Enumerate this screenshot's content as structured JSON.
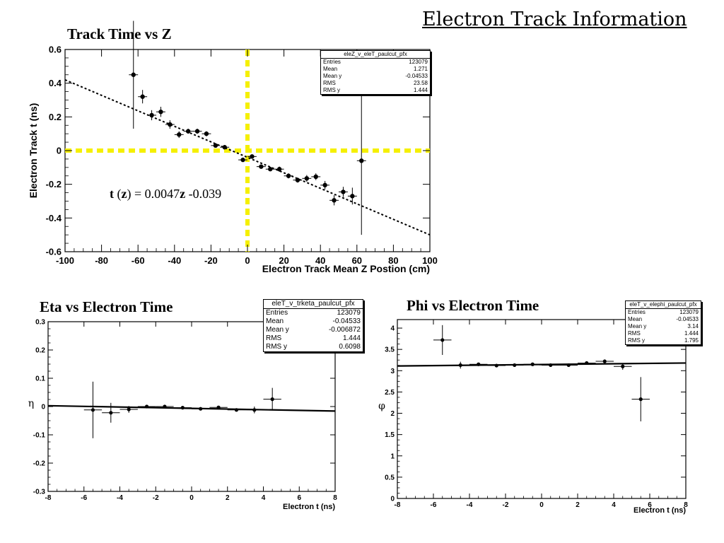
{
  "slide": {
    "title": "Electron Track Information"
  },
  "chart_data": [
    {
      "id": "track-time-vs-z",
      "type": "scatter",
      "title": "Track Time vs Z",
      "xlabel": "Electron Track Mean Z Postion (cm)",
      "ylabel": "Electron Track t (ns)",
      "xlim": [
        -100,
        100
      ],
      "ylim": [
        -0.6,
        0.6
      ],
      "x_ticks": [
        -100,
        -80,
        -60,
        -40,
        -20,
        0,
        20,
        40,
        60,
        80,
        100
      ],
      "y_ticks": [
        -0.6,
        -0.4,
        -0.2,
        0,
        0.2,
        0.4,
        0.6
      ],
      "x_tick_labels": [
        "-100",
        "-80",
        "-60",
        "-40",
        "-20",
        "0",
        "20",
        "40",
        "60",
        "80",
        "100"
      ],
      "y_tick_labels": [
        "-0.6",
        "-0.4",
        "-0.2",
        "0",
        "0.2",
        "0.4",
        "0.6"
      ],
      "points": [
        {
          "x": -62.5,
          "y": 0.45,
          "yerr": 0.32,
          "xerr": 2.5
        },
        {
          "x": -57.5,
          "y": 0.32,
          "yerr": 0.04,
          "xerr": 2.5
        },
        {
          "x": -52.5,
          "y": 0.21,
          "yerr": 0.03,
          "xerr": 2.5
        },
        {
          "x": -47.5,
          "y": 0.23,
          "yerr": 0.03,
          "xerr": 2.5
        },
        {
          "x": -42.5,
          "y": 0.155,
          "yerr": 0.025,
          "xerr": 2.5
        },
        {
          "x": -37.5,
          "y": 0.095,
          "yerr": 0.02,
          "xerr": 2.5
        },
        {
          "x": -32.5,
          "y": 0.115,
          "yerr": 0.015,
          "xerr": 2.5
        },
        {
          "x": -27.5,
          "y": 0.115,
          "yerr": 0.015,
          "xerr": 2.5
        },
        {
          "x": -22.5,
          "y": 0.1,
          "yerr": 0.015,
          "xerr": 2.5
        },
        {
          "x": -17.5,
          "y": 0.03,
          "yerr": 0.01,
          "xerr": 2.5
        },
        {
          "x": -12.5,
          "y": 0.02,
          "yerr": 0.01,
          "xerr": 2.5
        },
        {
          "x": -2.5,
          "y": -0.055,
          "yerr": 0.01,
          "xerr": 2.5
        },
        {
          "x": 2.5,
          "y": -0.035,
          "yerr": 0.01,
          "xerr": 2.5
        },
        {
          "x": 7.5,
          "y": -0.095,
          "yerr": 0.01,
          "xerr": 2.5
        },
        {
          "x": 12.5,
          "y": -0.11,
          "yerr": 0.01,
          "xerr": 2.5
        },
        {
          "x": 17.5,
          "y": -0.11,
          "yerr": 0.015,
          "xerr": 2.5
        },
        {
          "x": 22.5,
          "y": -0.15,
          "yerr": 0.015,
          "xerr": 2.5
        },
        {
          "x": 27.5,
          "y": -0.175,
          "yerr": 0.015,
          "xerr": 2.5
        },
        {
          "x": 32.5,
          "y": -0.165,
          "yerr": 0.02,
          "xerr": 2.5
        },
        {
          "x": 37.5,
          "y": -0.155,
          "yerr": 0.02,
          "xerr": 2.5
        },
        {
          "x": 42.5,
          "y": -0.205,
          "yerr": 0.025,
          "xerr": 2.5
        },
        {
          "x": 47.5,
          "y": -0.295,
          "yerr": 0.03,
          "xerr": 2.5
        },
        {
          "x": 52.5,
          "y": -0.245,
          "yerr": 0.03,
          "xerr": 2.5
        },
        {
          "x": 57.5,
          "y": -0.27,
          "yerr": 0.05,
          "xerr": 2.5
        },
        {
          "x": 62.5,
          "y": -0.06,
          "yerr": 0.44,
          "xerr": 2.5
        }
      ],
      "fit_line": {
        "x0": -100,
        "y0": 0.42,
        "x1": 100,
        "y1": -0.5,
        "style": "dotted"
      },
      "reference_lines": {
        "x": 0,
        "y": 0,
        "color": "#f5f000"
      },
      "stats": {
        "title": "eleZ_v_eleT_paulcut_pfx",
        "rows": [
          {
            "label": "Entries",
            "value": "123079"
          },
          {
            "label": "Mean",
            "value": "1.271"
          },
          {
            "label": "Mean y",
            "value": "-0.04533"
          },
          {
            "label": "RMS",
            "value": "23.58"
          },
          {
            "label": "RMS y",
            "value": "1.444"
          }
        ]
      },
      "annotation": {
        "t": "t",
        "mid": " (",
        "z1": "z",
        "mid2": ") = 0.0047",
        "z2": "z",
        "tail": " -0.039"
      }
    },
    {
      "id": "eta-vs-electron-time",
      "type": "scatter",
      "title": "Eta vs Electron Time",
      "xlabel": "Electron t (ns)",
      "ylabel": "η",
      "xlim": [
        -8,
        8
      ],
      "ylim": [
        -0.3,
        0.3
      ],
      "x_ticks": [
        -8,
        -6,
        -4,
        -2,
        0,
        2,
        4,
        6,
        8
      ],
      "y_ticks": [
        -0.3,
        -0.2,
        -0.1,
        0,
        0.1,
        0.2,
        0.3
      ],
      "x_tick_labels": [
        "-8",
        "-6",
        "-4",
        "-2",
        "0",
        "2",
        "4",
        "6",
        "8"
      ],
      "y_tick_labels": [
        "-0.3",
        "-0.2",
        "-0.1",
        "0",
        "0.1",
        "0.2",
        "0.3"
      ],
      "points": [
        {
          "x": -5.5,
          "y": -0.012,
          "yerr": 0.1,
          "xerr": 0.5
        },
        {
          "x": -4.5,
          "y": -0.022,
          "yerr": 0.035,
          "xerr": 0.5
        },
        {
          "x": -3.5,
          "y": -0.01,
          "yerr": 0.012,
          "xerr": 0.5
        },
        {
          "x": -2.5,
          "y": 0.0,
          "yerr": 0.004,
          "xerr": 0.5
        },
        {
          "x": -1.5,
          "y": 0.0,
          "yerr": 0.003,
          "xerr": 0.5
        },
        {
          "x": -0.5,
          "y": -0.004,
          "yerr": 0.002,
          "xerr": 0.5
        },
        {
          "x": 0.5,
          "y": -0.008,
          "yerr": 0.002,
          "xerr": 0.5
        },
        {
          "x": 1.5,
          "y": -0.003,
          "yerr": 0.003,
          "xerr": 0.5
        },
        {
          "x": 2.5,
          "y": -0.012,
          "yerr": 0.005,
          "xerr": 0.5
        },
        {
          "x": 3.5,
          "y": -0.012,
          "yerr": 0.012,
          "xerr": 0.5
        },
        {
          "x": 4.5,
          "y": 0.026,
          "yerr": 0.04,
          "xerr": 0.5
        }
      ],
      "fit_line": {
        "x0": -8,
        "y0": 0.003,
        "x1": 8,
        "y1": -0.016,
        "style": "solid"
      },
      "stats": {
        "title": "eleT_v_trketa_paulcut_pfx",
        "rows": [
          {
            "label": "Entries",
            "value": "123079"
          },
          {
            "label": "Mean",
            "value": "-0.04533"
          },
          {
            "label": "Mean y",
            "value": "-0.006872"
          },
          {
            "label": "RMS",
            "value": "1.444"
          },
          {
            "label": "RMS y",
            "value": "0.6098"
          }
        ]
      }
    },
    {
      "id": "phi-vs-electron-time",
      "type": "scatter",
      "title": "Phi vs Electron Time",
      "xlabel": "Electron t (ns)",
      "ylabel": "φ",
      "xlim": [
        -8,
        8
      ],
      "ylim": [
        0,
        4.2
      ],
      "x_ticks": [
        -8,
        -6,
        -4,
        -2,
        0,
        2,
        4,
        6,
        8
      ],
      "y_ticks": [
        0,
        0.5,
        1,
        1.5,
        2,
        2.5,
        3,
        3.5,
        4
      ],
      "x_tick_labels": [
        "-8",
        "-6",
        "-4",
        "-2",
        "0",
        "2",
        "4",
        "6",
        "8"
      ],
      "y_tick_labels": [
        "0",
        "0.5",
        "1",
        "1.5",
        "2",
        "2.5",
        "3",
        "3.5",
        "4"
      ],
      "points": [
        {
          "x": -5.5,
          "y": 3.72,
          "yerr": 0.35,
          "xerr": 0.5
        },
        {
          "x": -4.5,
          "y": 3.13,
          "yerr": 0.08,
          "xerr": 0.5
        },
        {
          "x": -3.5,
          "y": 3.15,
          "yerr": 0.03,
          "xerr": 0.5
        },
        {
          "x": -2.5,
          "y": 3.12,
          "yerr": 0.02,
          "xerr": 0.5
        },
        {
          "x": -1.5,
          "y": 3.13,
          "yerr": 0.02,
          "xerr": 0.5
        },
        {
          "x": -0.5,
          "y": 3.15,
          "yerr": 0.02,
          "xerr": 0.5
        },
        {
          "x": 0.5,
          "y": 3.13,
          "yerr": 0.02,
          "xerr": 0.5
        },
        {
          "x": 1.5,
          "y": 3.13,
          "yerr": 0.02,
          "xerr": 0.5
        },
        {
          "x": 2.5,
          "y": 3.18,
          "yerr": 0.02,
          "xerr": 0.5
        },
        {
          "x": 3.5,
          "y": 3.22,
          "yerr": 0.03,
          "xerr": 0.5
        },
        {
          "x": 4.5,
          "y": 3.1,
          "yerr": 0.08,
          "xerr": 0.5
        },
        {
          "x": 5.5,
          "y": 2.33,
          "yerr": 0.52,
          "xerr": 0.5
        }
      ],
      "fit_line": {
        "x0": -8,
        "y0": 3.11,
        "x1": 8,
        "y1": 3.18,
        "style": "solid"
      },
      "stats": {
        "title": "eleT_v_elephi_paulcut_pfx",
        "rows": [
          {
            "label": "Entries",
            "value": "123079"
          },
          {
            "label": "Mean",
            "value": "-0.04533"
          },
          {
            "label": "Mean y",
            "value": "3.14"
          },
          {
            "label": "RMS",
            "value": "1.444"
          },
          {
            "label": "RMS y",
            "value": "1.795"
          }
        ]
      }
    }
  ]
}
